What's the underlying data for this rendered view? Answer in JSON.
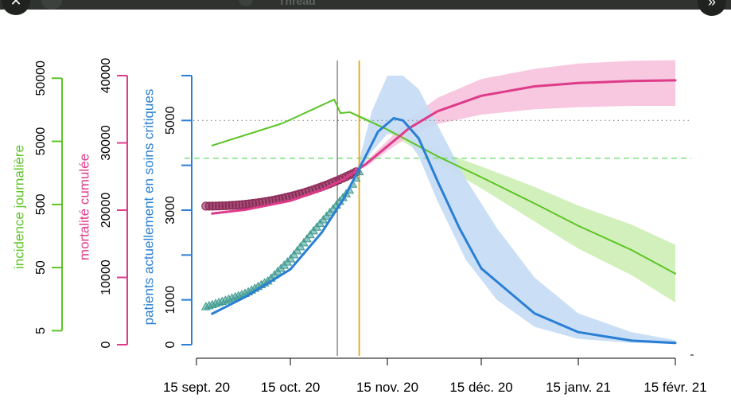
{
  "window": {
    "title": "Thread",
    "close_icon": "close-icon",
    "next_icon": "chevron-right-icon",
    "close_glyph": "✕",
    "next_glyph": "»"
  },
  "colors": {
    "incidence": "#5cc425",
    "mortality": "#de3b8a",
    "icu": "#2a7fd4",
    "mort_observed": "#8c2857",
    "icu_observed": "#3e9a8f",
    "orange_line": "#e8a317",
    "vline": "#555555"
  },
  "chart_data": {
    "type": "line",
    "x_axis": {
      "ticks": [
        {
          "date": "2020-09-15",
          "label": "15 sept. 20"
        },
        {
          "date": "2020-10-15",
          "label": "15 oct. 20"
        },
        {
          "date": "2020-11-15",
          "label": "15 nov. 20"
        },
        {
          "date": "2020-12-15",
          "label": "15 déc. 20"
        },
        {
          "date": "2021-01-15",
          "label": "15 janv. 21"
        },
        {
          "date": "2021-02-15",
          "label": "15 févr. 21"
        }
      ],
      "range": [
        "2020-09-15",
        "2021-02-15"
      ]
    },
    "y_axes": [
      {
        "key": "incidence",
        "label": "incidence journalière",
        "scale": "log",
        "range": [
          3,
          55000
        ],
        "ticks": [
          {
            "v": 5,
            "label": "5"
          },
          {
            "v": 50,
            "label": "50"
          },
          {
            "v": 500,
            "label": "500"
          },
          {
            "v": 5000,
            "label": "5000"
          },
          {
            "v": 50000,
            "label": "50000"
          }
        ]
      },
      {
        "key": "mortality",
        "label": "mortalité cumulée",
        "scale": "linear",
        "range": [
          0,
          40000
        ],
        "ticks": [
          {
            "v": 0,
            "label": "0"
          },
          {
            "v": 10000,
            "label": "10000"
          },
          {
            "v": 20000,
            "label": "20000"
          },
          {
            "v": 30000,
            "label": "30000"
          },
          {
            "v": 40000,
            "label": "40000"
          }
        ]
      },
      {
        "key": "icu",
        "label": "patients actuellement en soins critiques",
        "scale": "linear",
        "range": [
          0,
          6000
        ],
        "ticks": [
          {
            "v": 0,
            "label": "0"
          },
          {
            "v": 1000,
            "label": "1000"
          },
          {
            "v": 2000,
            "label": ""
          },
          {
            "v": 3000,
            "label": "3000"
          },
          {
            "v": 4000,
            "label": ""
          },
          {
            "v": 5000,
            "label": "5000"
          },
          {
            "v": 6000,
            "label": ""
          }
        ]
      }
    ],
    "reference_lines": [
      {
        "axis": "icu",
        "value": 5000,
        "style": "dotted",
        "color": "#888888"
      },
      {
        "axis": "incidence",
        "value": 2700,
        "style": "dashed",
        "color": "#7fe07f"
      }
    ],
    "vertical_lines": [
      {
        "date": "2020-10-30",
        "color": "#555555"
      },
      {
        "date": "2020-11-06",
        "color": "#e8a317"
      }
    ],
    "series": [
      {
        "key": "incidence_model",
        "axis": "incidence",
        "kind": "line",
        "points": [
          [
            "2020-09-20",
            4300
          ],
          [
            "2020-10-12",
            9500
          ],
          [
            "2020-10-15",
            11000
          ],
          [
            "2020-10-29",
            23000
          ],
          [
            "2020-10-31",
            14000
          ],
          [
            "2020-11-03",
            14500
          ],
          [
            "2020-11-15",
            7700
          ],
          [
            "2020-12-01",
            2900
          ],
          [
            "2020-12-15",
            1350
          ],
          [
            "2021-01-01",
            520
          ],
          [
            "2021-01-15",
            230
          ],
          [
            "2021-02-01",
            95
          ],
          [
            "2021-02-15",
            40
          ]
        ],
        "band": {
          "x": [
            "2020-11-03",
            "2020-11-15",
            "2020-12-01",
            "2020-12-15",
            "2021-01-01",
            "2021-01-15",
            "2021-02-01",
            "2021-02-15"
          ],
          "lower": [
            14000,
            7000,
            2300,
            900,
            270,
            100,
            38,
            14
          ],
          "upper": [
            15000,
            8600,
            3600,
            2000,
            950,
            480,
            240,
            115
          ]
        }
      },
      {
        "key": "mortality_model",
        "axis": "mortality",
        "kind": "line",
        "points": [
          [
            "2020-09-20",
            19500
          ],
          [
            "2020-10-01",
            20100
          ],
          [
            "2020-10-15",
            21400
          ],
          [
            "2020-10-25",
            23000
          ],
          [
            "2020-11-01",
            24600
          ],
          [
            "2020-11-08",
            26800
          ],
          [
            "2020-11-15",
            29500
          ],
          [
            "2020-11-22",
            32200
          ],
          [
            "2020-12-01",
            34700
          ],
          [
            "2020-12-15",
            37000
          ],
          [
            "2021-01-01",
            38400
          ],
          [
            "2021-01-15",
            38900
          ],
          [
            "2021-02-01",
            39200
          ],
          [
            "2021-02-15",
            39300
          ]
        ],
        "band": {
          "x": [
            "2020-11-08",
            "2020-11-15",
            "2020-11-22",
            "2020-12-01",
            "2020-12-15",
            "2021-01-01",
            "2021-01-15",
            "2021-02-01",
            "2021-02-15"
          ],
          "lower": [
            26400,
            28800,
            31000,
            32800,
            34200,
            35000,
            35300,
            35500,
            35500
          ],
          "upper": [
            27200,
            30300,
            33600,
            36700,
            39500,
            41000,
            41800,
            42200,
            42300
          ]
        }
      },
      {
        "key": "icu_model",
        "axis": "icu",
        "kind": "line",
        "points": [
          [
            "2020-09-20",
            690
          ],
          [
            "2020-10-01",
            1080
          ],
          [
            "2020-10-15",
            1680
          ],
          [
            "2020-10-25",
            2500
          ],
          [
            "2020-11-01",
            3250
          ],
          [
            "2020-11-08",
            4200
          ],
          [
            "2020-11-12",
            4750
          ],
          [
            "2020-11-17",
            5050
          ],
          [
            "2020-11-20",
            5000
          ],
          [
            "2020-11-25",
            4600
          ],
          [
            "2020-12-01",
            3650
          ],
          [
            "2020-12-08",
            2600
          ],
          [
            "2020-12-15",
            1700
          ],
          [
            "2021-01-01",
            700
          ],
          [
            "2021-01-15",
            280
          ],
          [
            "2021-02-01",
            90
          ],
          [
            "2021-02-15",
            40
          ]
        ],
        "band": {
          "x": [
            "2020-11-05",
            "2020-11-10",
            "2020-11-15",
            "2020-11-20",
            "2020-11-25",
            "2020-12-01",
            "2020-12-10",
            "2020-12-20",
            "2021-01-01",
            "2021-01-15",
            "2021-02-01",
            "2021-02-15"
          ],
          "lower": [
            3750,
            4300,
            4700,
            4700,
            4200,
            3200,
            1900,
            1000,
            400,
            130,
            40,
            15
          ],
          "upper": [
            3850,
            5200,
            6000,
            6000,
            5700,
            4900,
            3700,
            2600,
            1500,
            700,
            280,
            100
          ]
        }
      },
      {
        "key": "mortality_observed",
        "axis": "mortality",
        "kind": "circles",
        "x_range": [
          "2020-09-18",
          "2020-11-05"
        ],
        "y_start": 20600,
        "y_end": 25700,
        "count": 46
      },
      {
        "key": "icu_observed",
        "axis": "icu",
        "kind": "triangles",
        "x_range": [
          "2020-09-18",
          "2020-11-06"
        ],
        "points": [
          [
            "2020-09-18",
            840
          ],
          [
            "2020-09-25",
            1000
          ],
          [
            "2020-10-01",
            1150
          ],
          [
            "2020-10-08",
            1420
          ],
          [
            "2020-10-15",
            1900
          ],
          [
            "2020-10-22",
            2500
          ],
          [
            "2020-10-29",
            3050
          ],
          [
            "2020-11-03",
            3450
          ],
          [
            "2020-11-06",
            3850
          ]
        ]
      }
    ]
  }
}
